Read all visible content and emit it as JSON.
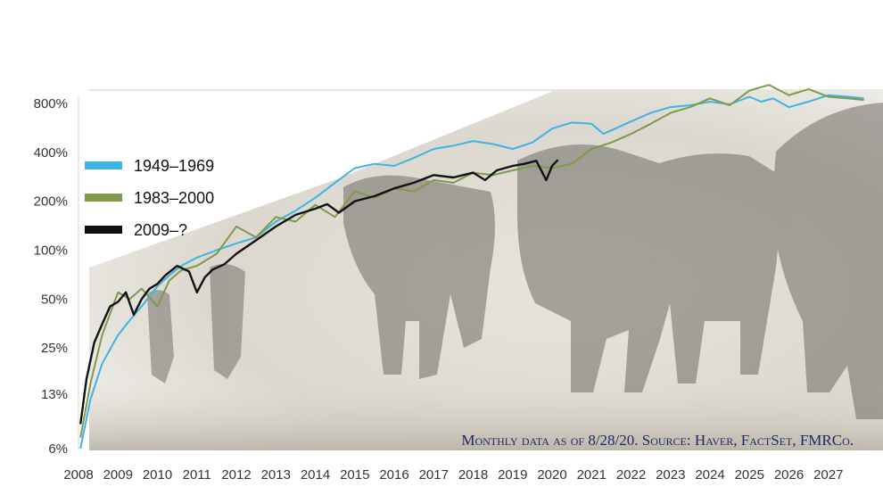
{
  "chart_data": {
    "type": "line",
    "y_scale": "log",
    "y_unit": "% cumulative return",
    "y_ticks": [
      {
        "label": "6%",
        "value": 6
      },
      {
        "label": "13%",
        "value": 13
      },
      {
        "label": "25%",
        "value": 25
      },
      {
        "label": "50%",
        "value": 50
      },
      {
        "label": "100%",
        "value": 100
      },
      {
        "label": "200%",
        "value": 200
      },
      {
        "label": "400%",
        "value": 400
      },
      {
        "label": "800%",
        "value": 800
      }
    ],
    "x_ticks": [
      "2008",
      "2009",
      "2010",
      "2011",
      "2012",
      "2013",
      "2014",
      "2015",
      "2016",
      "2017",
      "2018",
      "2019",
      "2020",
      "2021",
      "2022",
      "2023",
      "2024",
      "2025",
      "2026",
      "2027"
    ],
    "xlim": [
      2008,
      2028
    ],
    "ylim": [
      6,
      900
    ],
    "grid": false,
    "legend_position": "left",
    "series": [
      {
        "name": "1949–1969",
        "color": "#3db4e5",
        "x": [
          2008.05,
          2008.3,
          2008.6,
          2009.0,
          2009.3,
          2009.6,
          2010.0,
          2010.3,
          2010.6,
          2011.0,
          2011.5,
          2012.0,
          2012.5,
          2013.0,
          2013.5,
          2014.0,
          2014.5,
          2015.0,
          2015.5,
          2016.0,
          2016.5,
          2017.0,
          2017.5,
          2018.0,
          2018.5,
          2019.0,
          2019.5,
          2020.0,
          2020.5,
          2021.0,
          2021.3,
          2021.6,
          2022.0,
          2022.5,
          2023.0,
          2023.5,
          2024.0,
          2024.5,
          2025.0,
          2025.3,
          2025.6,
          2026.0,
          2026.5,
          2027.0,
          2027.5,
          2027.9
        ],
        "values": [
          6,
          12,
          20,
          30,
          37,
          45,
          60,
          70,
          80,
          90,
          100,
          110,
          120,
          150,
          175,
          210,
          260,
          320,
          340,
          330,
          370,
          420,
          440,
          470,
          450,
          420,
          460,
          560,
          610,
          600,
          520,
          560,
          620,
          700,
          760,
          780,
          820,
          790,
          880,
          820,
          860,
          760,
          820,
          900,
          880,
          860
        ]
      },
      {
        "name": "1983–2000",
        "color": "#7e9a4a",
        "x": [
          2008.05,
          2008.3,
          2008.6,
          2009.0,
          2009.3,
          2009.6,
          2010.0,
          2010.3,
          2010.6,
          2011.0,
          2011.5,
          2012.0,
          2012.5,
          2013.0,
          2013.5,
          2014.0,
          2014.5,
          2015.0,
          2015.5,
          2016.0,
          2016.5,
          2017.0,
          2017.5,
          2018.0,
          2018.5,
          2019.0,
          2019.5,
          2020.0,
          2020.5,
          2021.0,
          2021.5,
          2022.0,
          2022.5,
          2023.0,
          2023.5,
          2024.0,
          2024.5,
          2025.0,
          2025.5,
          2026.0,
          2026.5,
          2027.0,
          2027.5,
          2027.9
        ],
        "values": [
          7,
          15,
          30,
          55,
          50,
          58,
          45,
          65,
          75,
          80,
          95,
          140,
          120,
          160,
          150,
          190,
          160,
          230,
          210,
          240,
          230,
          270,
          260,
          300,
          290,
          310,
          330,
          320,
          340,
          420,
          460,
          520,
          600,
          700,
          760,
          860,
          780,
          960,
          1040,
          900,
          980,
          880,
          860,
          840
        ]
      },
      {
        "name": "2009–?",
        "color": "#111111",
        "x": [
          2008.05,
          2008.2,
          2008.4,
          2008.6,
          2008.8,
          2009.0,
          2009.2,
          2009.4,
          2009.6,
          2009.8,
          2010.0,
          2010.2,
          2010.5,
          2010.8,
          2011.0,
          2011.2,
          2011.4,
          2011.7,
          2012.0,
          2012.5,
          2013.0,
          2013.5,
          2014.0,
          2014.3,
          2014.6,
          2015.0,
          2015.5,
          2016.0,
          2016.5,
          2017.0,
          2017.5,
          2018.0,
          2018.3,
          2018.6,
          2019.0,
          2019.3,
          2019.6,
          2019.85,
          2020.0,
          2020.15
        ],
        "values": [
          8.5,
          16,
          27,
          35,
          45,
          48,
          55,
          40,
          50,
          58,
          62,
          70,
          80,
          74,
          55,
          68,
          76,
          82,
          95,
          115,
          140,
          165,
          180,
          192,
          170,
          200,
          215,
          240,
          260,
          290,
          280,
          300,
          270,
          310,
          330,
          340,
          355,
          270,
          330,
          360
        ]
      }
    ],
    "source_note": "Monthly data as of 8/28/20. Source: Haver, FactSet, FMRCo."
  }
}
